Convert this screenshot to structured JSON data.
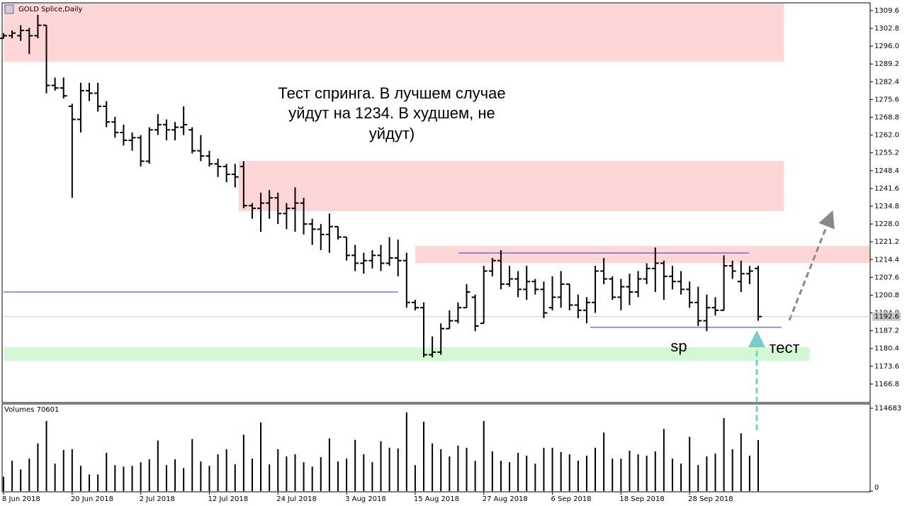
{
  "chart_data": {
    "type": "ohlc",
    "title": "GOLD Splice,Daily",
    "categories": [
      "8 Jun 2018",
      null,
      null,
      null,
      null,
      null,
      null,
      null,
      "20 Jun 2018",
      null,
      null,
      null,
      null,
      null,
      null,
      null,
      "2 Jul 2018",
      null,
      null,
      null,
      null,
      null,
      null,
      null,
      "12 Jul 2018",
      null,
      null,
      null,
      null,
      null,
      null,
      null,
      "24 Jul 2018",
      null,
      null,
      null,
      null,
      null,
      null,
      null,
      "3 Aug 2018",
      null,
      null,
      null,
      null,
      null,
      null,
      null,
      "15 Aug 2018",
      null,
      null,
      null,
      null,
      null,
      null,
      null,
      "27 Aug 2018",
      null,
      null,
      null,
      null,
      null,
      null,
      null,
      "6 Sep 2018",
      null,
      null,
      null,
      null,
      null,
      null,
      null,
      "18 Sep 2018",
      null,
      null,
      null,
      null,
      null,
      null,
      null,
      "28 Sep 2018",
      null,
      null,
      null,
      null,
      null,
      null,
      null,
      null
    ],
    "ohlc": [
      [
        1299,
        1301,
        1299,
        1300
      ],
      [
        1300,
        1302,
        1299,
        1301
      ],
      [
        1300,
        1304,
        1298,
        1302
      ],
      [
        1302,
        1303,
        1293,
        1300
      ],
      [
        1300,
        1308,
        1299,
        1304
      ],
      [
        1304,
        1304,
        1278,
        1281
      ],
      [
        1281,
        1284,
        1279,
        1280
      ],
      [
        1280,
        1284,
        1276,
        1277
      ],
      [
        1273,
        1274,
        1238,
        1268
      ],
      [
        1268,
        1282,
        1263,
        1279
      ],
      [
        1279,
        1282,
        1275,
        1278
      ],
      [
        1278,
        1282,
        1271,
        1273
      ],
      [
        1273,
        1275,
        1265,
        1267
      ],
      [
        1267,
        1269,
        1261,
        1263
      ],
      [
        1263,
        1266,
        1258,
        1260
      ],
      [
        1260,
        1263,
        1256,
        1261
      ],
      [
        1261,
        1262,
        1250,
        1252
      ],
      [
        1252,
        1265,
        1251,
        1264
      ],
      [
        1264,
        1270,
        1262,
        1266
      ],
      [
        1266,
        1268,
        1260,
        1264
      ],
      [
        1264,
        1267,
        1260,
        1265
      ],
      [
        1265,
        1273,
        1262,
        1266
      ],
      [
        1264,
        1265,
        1255,
        1256
      ],
      [
        1256,
        1262,
        1252,
        1254
      ],
      [
        1254,
        1256,
        1250,
        1251
      ],
      [
        1251,
        1253,
        1246,
        1250
      ],
      [
        1250,
        1251,
        1244,
        1247
      ],
      [
        1247,
        1251,
        1242,
        1246
      ],
      [
        1250,
        1252,
        1234,
        1235
      ],
      [
        1235,
        1236,
        1230,
        1234
      ],
      [
        1234,
        1240,
        1225,
        1236
      ],
      [
        1236,
        1241,
        1230,
        1238
      ],
      [
        1238,
        1240,
        1228,
        1232
      ],
      [
        1232,
        1236,
        1226,
        1234
      ],
      [
        1234,
        1242,
        1225,
        1236
      ],
      [
        1236,
        1238,
        1224,
        1228
      ],
      [
        1228,
        1230,
        1220,
        1226
      ],
      [
        1226,
        1228,
        1218,
        1224
      ],
      [
        1224,
        1232,
        1217,
        1227
      ],
      [
        1227,
        1227,
        1222,
        1223
      ],
      [
        1223,
        1223,
        1214,
        1216
      ],
      [
        1216,
        1220,
        1210,
        1213
      ],
      [
        1213,
        1217,
        1209,
        1214
      ],
      [
        1214,
        1218,
        1211,
        1216
      ],
      [
        1216,
        1220,
        1210,
        1213
      ],
      [
        1213,
        1223,
        1212,
        1215
      ],
      [
        1215,
        1222,
        1208,
        1214
      ],
      [
        1214,
        1217,
        1196,
        1198
      ],
      [
        1198,
        1199,
        1195,
        1196
      ],
      [
        1196,
        1198,
        1177,
        1178
      ],
      [
        1178,
        1185,
        1177,
        1179
      ],
      [
        1179,
        1190,
        1178,
        1188
      ],
      [
        1188,
        1195,
        1188,
        1191
      ],
      [
        1191,
        1198,
        1190,
        1196
      ],
      [
        1196,
        1205,
        1196,
        1202
      ],
      [
        1200,
        1201,
        1187,
        1189
      ],
      [
        1190,
        1212,
        1190,
        1210
      ],
      [
        1210,
        1215,
        1208,
        1214
      ],
      [
        1214,
        1218,
        1203,
        1205
      ],
      [
        1205,
        1212,
        1204,
        1207
      ],
      [
        1207,
        1210,
        1200,
        1203
      ],
      [
        1203,
        1212,
        1199,
        1206
      ],
      [
        1206,
        1207,
        1201,
        1203
      ],
      [
        1203,
        1206,
        1192,
        1194
      ],
      [
        1196,
        1208,
        1195,
        1200
      ],
      [
        1200,
        1210,
        1196,
        1205
      ],
      [
        1205,
        1205,
        1195,
        1197
      ],
      [
        1197,
        1201,
        1192,
        1195
      ],
      [
        1195,
        1200,
        1190,
        1198
      ],
      [
        1198,
        1212,
        1194,
        1210
      ],
      [
        1210,
        1215,
        1205,
        1207
      ],
      [
        1207,
        1208,
        1199,
        1200
      ],
      [
        1200,
        1207,
        1195,
        1204
      ],
      [
        1204,
        1209,
        1197,
        1202
      ],
      [
        1202,
        1210,
        1200,
        1207
      ],
      [
        1207,
        1213,
        1205,
        1211
      ],
      [
        1211,
        1219,
        1202,
        1213
      ],
      [
        1213,
        1214,
        1199,
        1208
      ],
      [
        1208,
        1212,
        1203,
        1206
      ],
      [
        1206,
        1210,
        1201,
        1203
      ],
      [
        1203,
        1206,
        1196,
        1198
      ],
      [
        1198,
        1204,
        1189,
        1191
      ],
      [
        1191,
        1201,
        1187,
        1196
      ],
      [
        1196,
        1200,
        1193,
        1195
      ],
      [
        1195,
        1216,
        1195,
        1212
      ],
      [
        1212,
        1214,
        1207,
        1210
      ],
      [
        1206,
        1214,
        1202,
        1209
      ],
      [
        1209,
        1212,
        1205,
        1210
      ],
      [
        1211,
        1212,
        1191,
        1192.6
      ]
    ],
    "color": "#000000",
    "ylim": [
      1160.0,
      1312.3
    ],
    "yticks": [
      1309.6,
      1302.8,
      {
        "value": 1296.0,
        "label": "1296.0"
      },
      1289.2,
      1282.4,
      1275.6,
      1268.8,
      {
        "value": 1262.0,
        "label": "1262.0"
      },
      1255.2,
      1248.4,
      1241.6,
      1234.8,
      {
        "value": 1228.0,
        "label": "1228.0"
      },
      1221.2,
      1214.4,
      1207.6,
      1200.8,
      {
        "value": 1194.0,
        "label": "1194.0"
      },
      1187.2,
      1180.4,
      1173.6,
      1166.8
    ],
    "zones": [
      {
        "x": [
          0,
          91
        ],
        "range": [
          1290.1,
          1312.3
        ],
        "color": "#ffd6d6"
      },
      {
        "x": [
          27.4,
          91
        ],
        "range": [
          1232.9,
          1252.1
        ],
        "color": "#ffd6d6"
      },
      {
        "x": [
          48,
          101
        ],
        "range": [
          1213.1,
          1219.6
        ],
        "color": "#ffd6d6"
      },
      {
        "x": [
          0,
          94
        ],
        "range": [
          1175.7,
          1180.9
        ],
        "color": "#d4f7d4"
      }
    ],
    "levels": [
      {
        "x": [
          0,
          46
        ],
        "value": 1202.0,
        "color": "#2233dd"
      },
      {
        "x": [
          53.1,
          86.9
        ],
        "value": 1216.9,
        "color": "#2233dd"
      },
      {
        "x": [
          68.4,
          90.7
        ],
        "value": 1188.5,
        "color": "#2233dd"
      }
    ],
    "annotation": [
      "Тест спринга. В лучшем случае",
      "уйдут на 1234. В худшем, не",
      "уйдут)"
    ],
    "labels": [
      "sp",
      "тест"
    ],
    "volume": {
      "title": "Volumes 70601",
      "ylim": [
        0,
        119600
      ],
      "yticks": [
        114683,
        0
      ],
      "values": [
        20000,
        42000,
        30000,
        45000,
        66000,
        97000,
        38000,
        57000,
        58000,
        35000,
        23000,
        23000,
        53000,
        36000,
        34000,
        35000,
        40000,
        44000,
        70000,
        36000,
        44000,
        32000,
        72000,
        41000,
        35000,
        51000,
        58000,
        37000,
        78000,
        45000,
        95000,
        37000,
        58000,
        48000,
        51000,
        40000,
        34000,
        47000,
        73000,
        41000,
        45000,
        71000,
        51000,
        40000,
        69000,
        60000,
        59000,
        109000,
        36000,
        96000,
        66000,
        58000,
        48000,
        63000,
        60000,
        42000,
        97000,
        55000,
        42000,
        40000,
        53000,
        49000,
        38000,
        60000,
        60000,
        54000,
        51000,
        42000,
        49000,
        60000,
        81000,
        45000,
        45000,
        56000,
        51000,
        49000,
        55000,
        86000,
        45000,
        38000,
        75000,
        36000,
        48000,
        52000,
        101000,
        58000,
        80000,
        49000,
        70601
      ]
    }
  }
}
